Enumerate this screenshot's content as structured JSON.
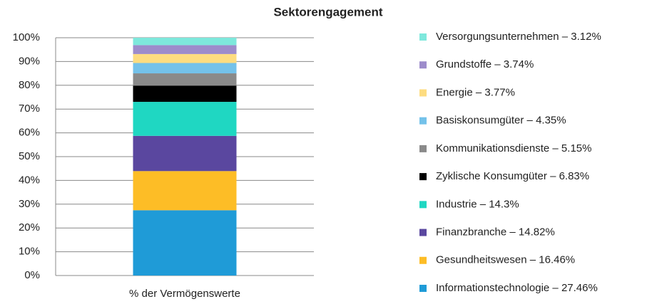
{
  "chart_data": {
    "type": "stacked_bar",
    "title": "Sektorengagement",
    "categories": [
      "% der Vermögenswerte"
    ],
    "series": [
      {
        "name": "Informationstechnologie – 27.46%",
        "color": "#1f9bd7",
        "values": [
          27.46
        ]
      },
      {
        "name": "Gesundheitswesen – 16.46%",
        "color": "#fdbd26",
        "values": [
          16.46
        ]
      },
      {
        "name": "Finanzbranche – 14.82%",
        "color": "#5a479f",
        "values": [
          14.82
        ]
      },
      {
        "name": "Industrie – 14.3%",
        "color": "#1fd7c2",
        "values": [
          14.3
        ]
      },
      {
        "name": "Zyklische Konsumgüter – 6.83%",
        "color": "#000000",
        "values": [
          6.83
        ]
      },
      {
        "name": "Kommunikationsdienste – 5.15%",
        "color": "#8a8a8a",
        "values": [
          5.15
        ]
      },
      {
        "name": "Basiskonsumgüter – 4.35%",
        "color": "#74c2ea",
        "values": [
          4.35
        ]
      },
      {
        "name": "Energie – 3.77%",
        "color": "#fddc80",
        "values": [
          3.77
        ]
      },
      {
        "name": "Grundstoffe – 3.74%",
        "color": "#9d8ccb",
        "values": [
          3.74
        ]
      },
      {
        "name": "Versorgungsunternehmen – 3.12%",
        "color": "#7ee8dc",
        "values": [
          3.12
        ]
      }
    ],
    "ylim": [
      0,
      100
    ],
    "yticks": [
      {
        "value": 0,
        "label": "0%"
      },
      {
        "value": 10,
        "label": "10%"
      },
      {
        "value": 20,
        "label": "20%"
      },
      {
        "value": 30,
        "label": "30%"
      },
      {
        "value": 40,
        "label": "40%"
      },
      {
        "value": 50,
        "label": "50%"
      },
      {
        "value": 60,
        "label": "60%"
      },
      {
        "value": 70,
        "label": "70%"
      },
      {
        "value": 80,
        "label": "80%"
      },
      {
        "value": 90,
        "label": "90%"
      },
      {
        "value": 100,
        "label": "100%"
      }
    ],
    "grid": true,
    "legend": "right"
  }
}
